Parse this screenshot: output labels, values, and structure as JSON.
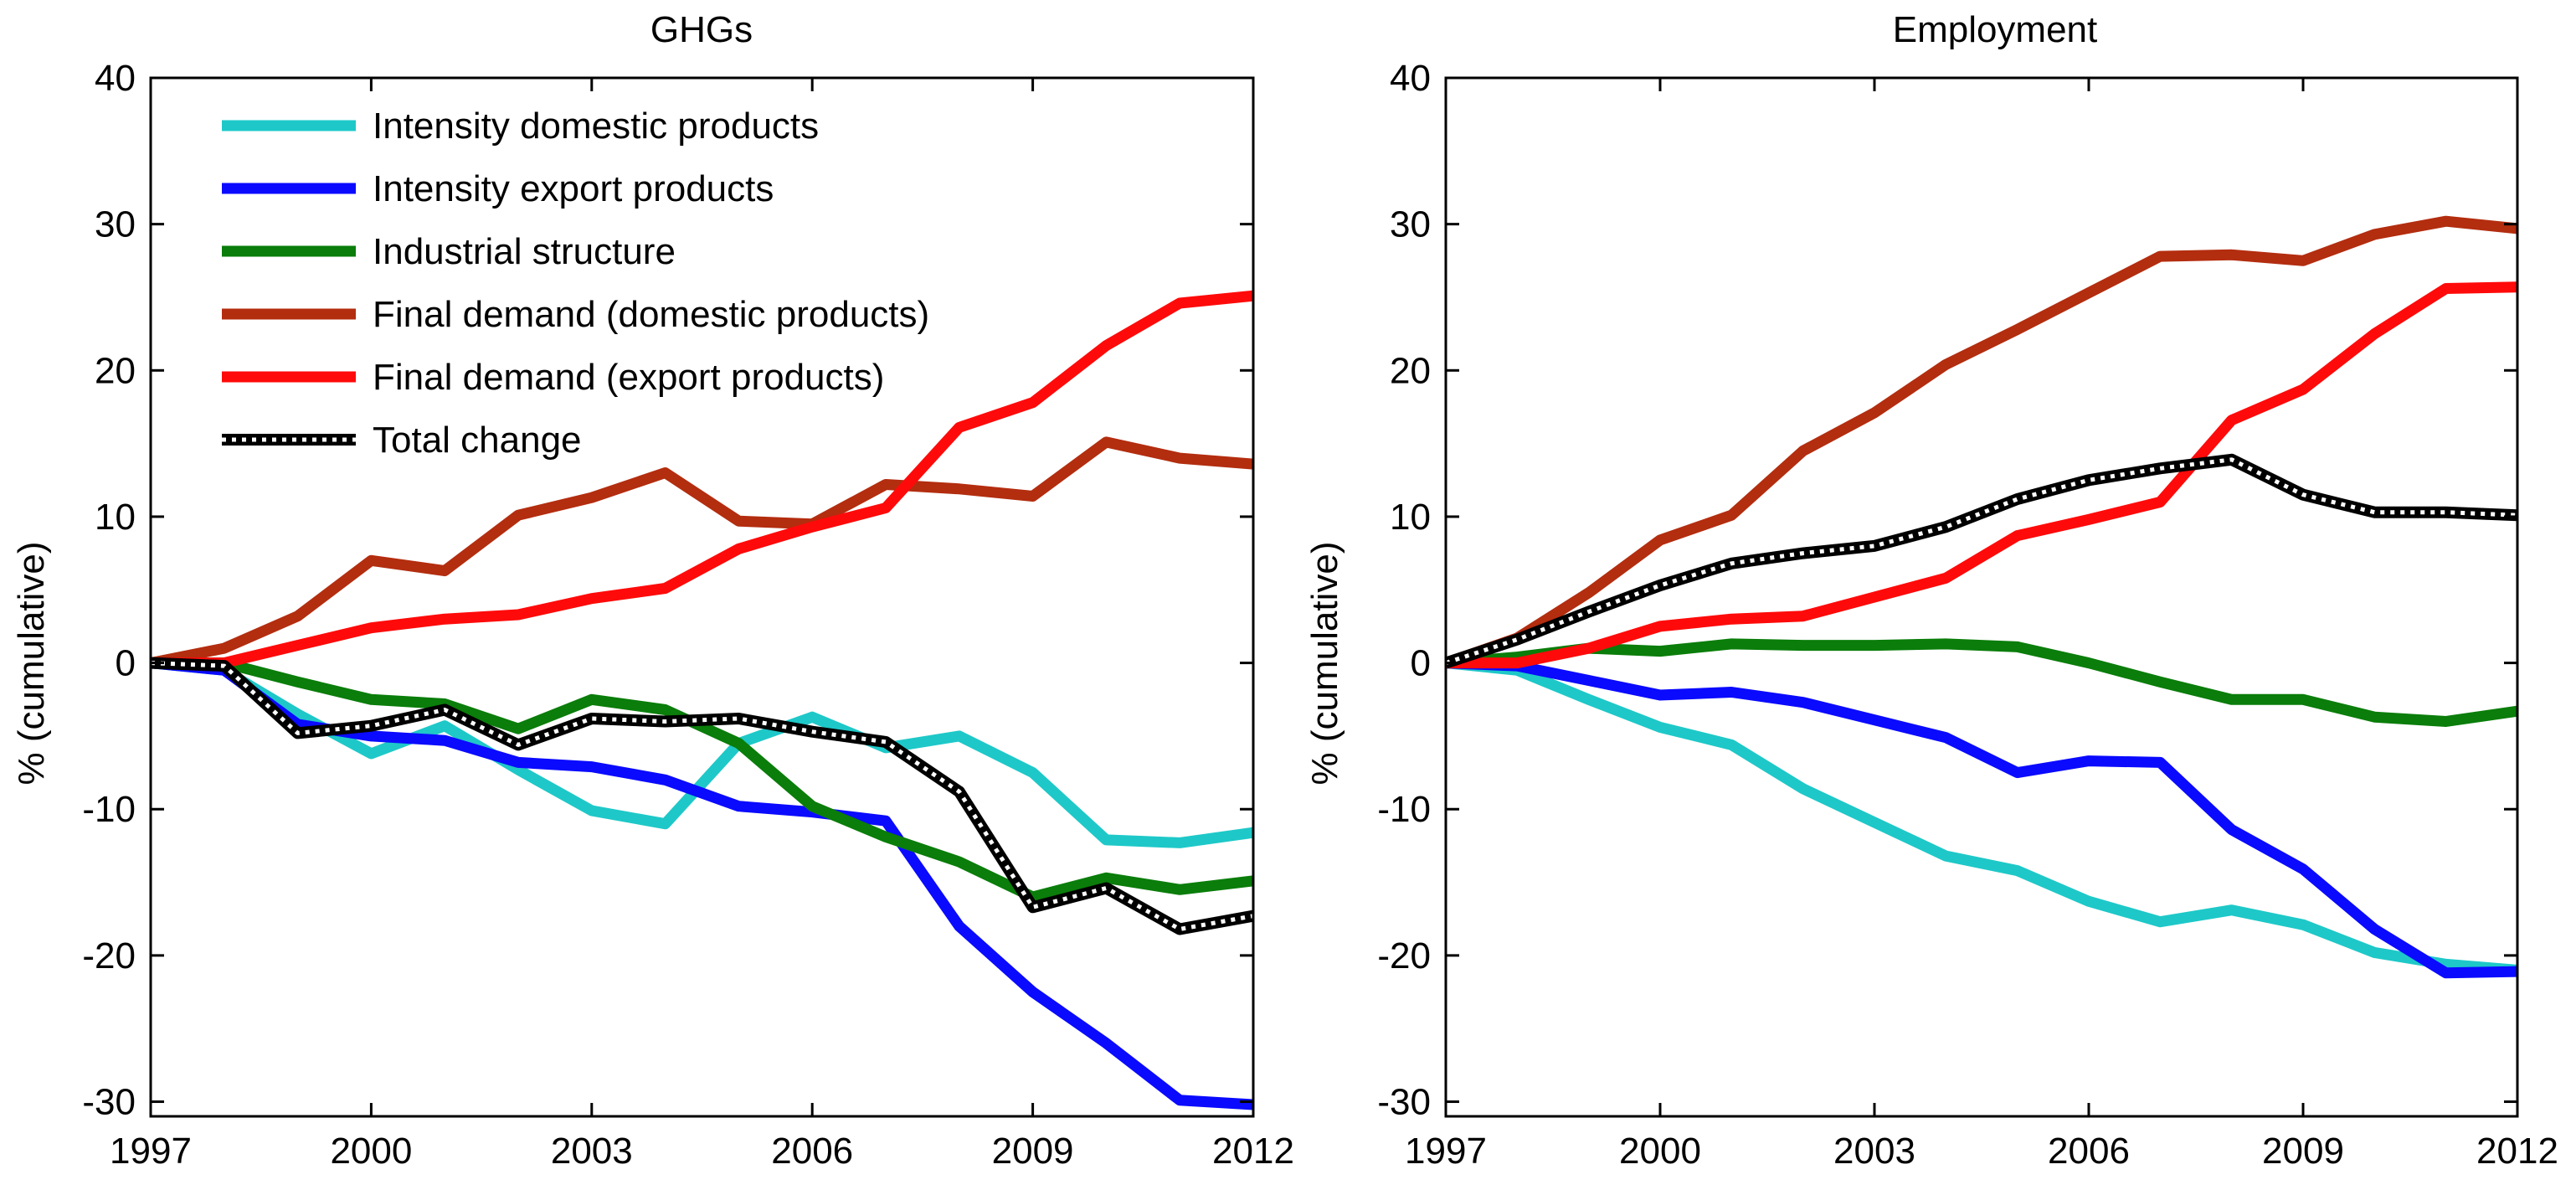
{
  "chart_data": [
    {
      "type": "line",
      "title": "GHGs",
      "xlabel": "",
      "ylabel": "% (cumulative)",
      "xlim": [
        1997,
        2012
      ],
      "ylim": [
        -31,
        40
      ],
      "xticks": [
        1997,
        2000,
        2003,
        2006,
        2009,
        2012
      ],
      "yticks": [
        -30,
        -20,
        -10,
        0,
        10,
        20,
        30,
        40
      ],
      "grid": false,
      "legend_position": "top-left",
      "x": [
        1997,
        1998,
        1999,
        2000,
        2001,
        2002,
        2003,
        2004,
        2005,
        2006,
        2007,
        2008,
        2009,
        2010,
        2011,
        2012
      ],
      "series": [
        {
          "name": "Intensity domestic products",
          "color": "#1ec8c8",
          "style": "solid",
          "values": [
            0,
            -0.5,
            -3.5,
            -6.2,
            -4.3,
            -7.3,
            -10.1,
            -11.0,
            -5.5,
            -3.7,
            -5.8,
            -5.0,
            -7.5,
            -12.1,
            -12.3,
            -11.6
          ]
        },
        {
          "name": "Intensity export products",
          "color": "#0a0aff",
          "style": "solid",
          "values": [
            0,
            -0.5,
            -4.2,
            -5.0,
            -5.3,
            -6.8,
            -7.1,
            -8.0,
            -9.8,
            -10.2,
            -10.8,
            -18.0,
            -22.5,
            -26.0,
            -29.9,
            -30.2
          ]
        },
        {
          "name": "Industrial structure",
          "color": "#0a7d0a",
          "style": "solid",
          "values": [
            0,
            0,
            -1.3,
            -2.5,
            -2.8,
            -4.5,
            -2.5,
            -3.2,
            -5.5,
            -9.8,
            -11.9,
            -13.6,
            -16.0,
            -14.7,
            -15.5,
            -14.9
          ]
        },
        {
          "name": "Final demand (domestic products)",
          "color": "#b32d0f",
          "style": "solid",
          "values": [
            0,
            1.0,
            3.2,
            7.0,
            6.3,
            10.1,
            11.3,
            13.0,
            9.7,
            9.5,
            12.2,
            11.9,
            11.4,
            15.1,
            14.0,
            13.6
          ]
        },
        {
          "name": "Final demand (export products)",
          "color": "#ff0a0a",
          "style": "solid",
          "values": [
            0,
            0,
            1.2,
            2.4,
            3.0,
            3.3,
            4.4,
            5.1,
            7.8,
            9.3,
            10.6,
            16.1,
            17.8,
            21.7,
            24.6,
            25.1
          ]
        },
        {
          "name": "Total change",
          "color": "#000000",
          "style": "dotted",
          "values": [
            0,
            -0.2,
            -4.8,
            -4.3,
            -3.2,
            -5.6,
            -3.8,
            -4.0,
            -3.8,
            -4.7,
            -5.4,
            -8.8,
            -16.7,
            -15.4,
            -18.2,
            -17.3
          ]
        }
      ]
    },
    {
      "type": "line",
      "title": "Employment",
      "xlabel": "",
      "ylabel": "% (cumulative)",
      "xlim": [
        1997,
        2012
      ],
      "ylim": [
        -31,
        40
      ],
      "xticks": [
        1997,
        2000,
        2003,
        2006,
        2009,
        2012
      ],
      "yticks": [
        -30,
        -20,
        -10,
        0,
        10,
        20,
        30,
        40
      ],
      "grid": false,
      "x": [
        1997,
        1998,
        1999,
        2000,
        2001,
        2002,
        2003,
        2004,
        2005,
        2006,
        2007,
        2008,
        2009,
        2010,
        2011,
        2012
      ],
      "series": [
        {
          "name": "Intensity domestic products",
          "color": "#1ec8c8",
          "style": "solid",
          "values": [
            0,
            -0.5,
            -2.5,
            -4.4,
            -5.6,
            -8.6,
            -10.9,
            -13.2,
            -14.2,
            -16.3,
            -17.7,
            -16.9,
            -17.9,
            -19.8,
            -20.6,
            -21.0
          ]
        },
        {
          "name": "Intensity export products",
          "color": "#0a0aff",
          "style": "solid",
          "values": [
            0,
            -0.2,
            -1.2,
            -2.2,
            -2.0,
            -2.7,
            -3.9,
            -5.1,
            -7.5,
            -6.7,
            -6.8,
            -11.4,
            -14.1,
            -18.2,
            -21.2,
            -21.1
          ]
        },
        {
          "name": "Industrial structure",
          "color": "#0a7d0a",
          "style": "solid",
          "values": [
            0,
            0.4,
            1.0,
            0.8,
            1.3,
            1.2,
            1.2,
            1.3,
            1.1,
            0,
            -1.3,
            -2.5,
            -2.5,
            -3.7,
            -4.0,
            -3.3
          ]
        },
        {
          "name": "Final demand (domestic products)",
          "color": "#b32d0f",
          "style": "solid",
          "values": [
            0,
            1.7,
            4.8,
            8.4,
            10.1,
            14.5,
            17.1,
            20.4,
            22.8,
            25.3,
            27.8,
            27.9,
            27.5,
            29.3,
            30.2,
            29.7
          ]
        },
        {
          "name": "Final demand (export products)",
          "color": "#ff0a0a",
          "style": "solid",
          "values": [
            0,
            0,
            1.0,
            2.5,
            3.0,
            3.2,
            4.5,
            5.8,
            8.7,
            9.8,
            11.0,
            16.6,
            18.7,
            22.5,
            25.6,
            25.7
          ]
        },
        {
          "name": "Total change",
          "color": "#000000",
          "style": "dotted",
          "values": [
            0,
            1.6,
            3.5,
            5.3,
            6.8,
            7.5,
            8.0,
            9.3,
            11.2,
            12.5,
            13.3,
            13.9,
            11.5,
            10.3,
            10.3,
            10.1
          ]
        }
      ]
    }
  ]
}
